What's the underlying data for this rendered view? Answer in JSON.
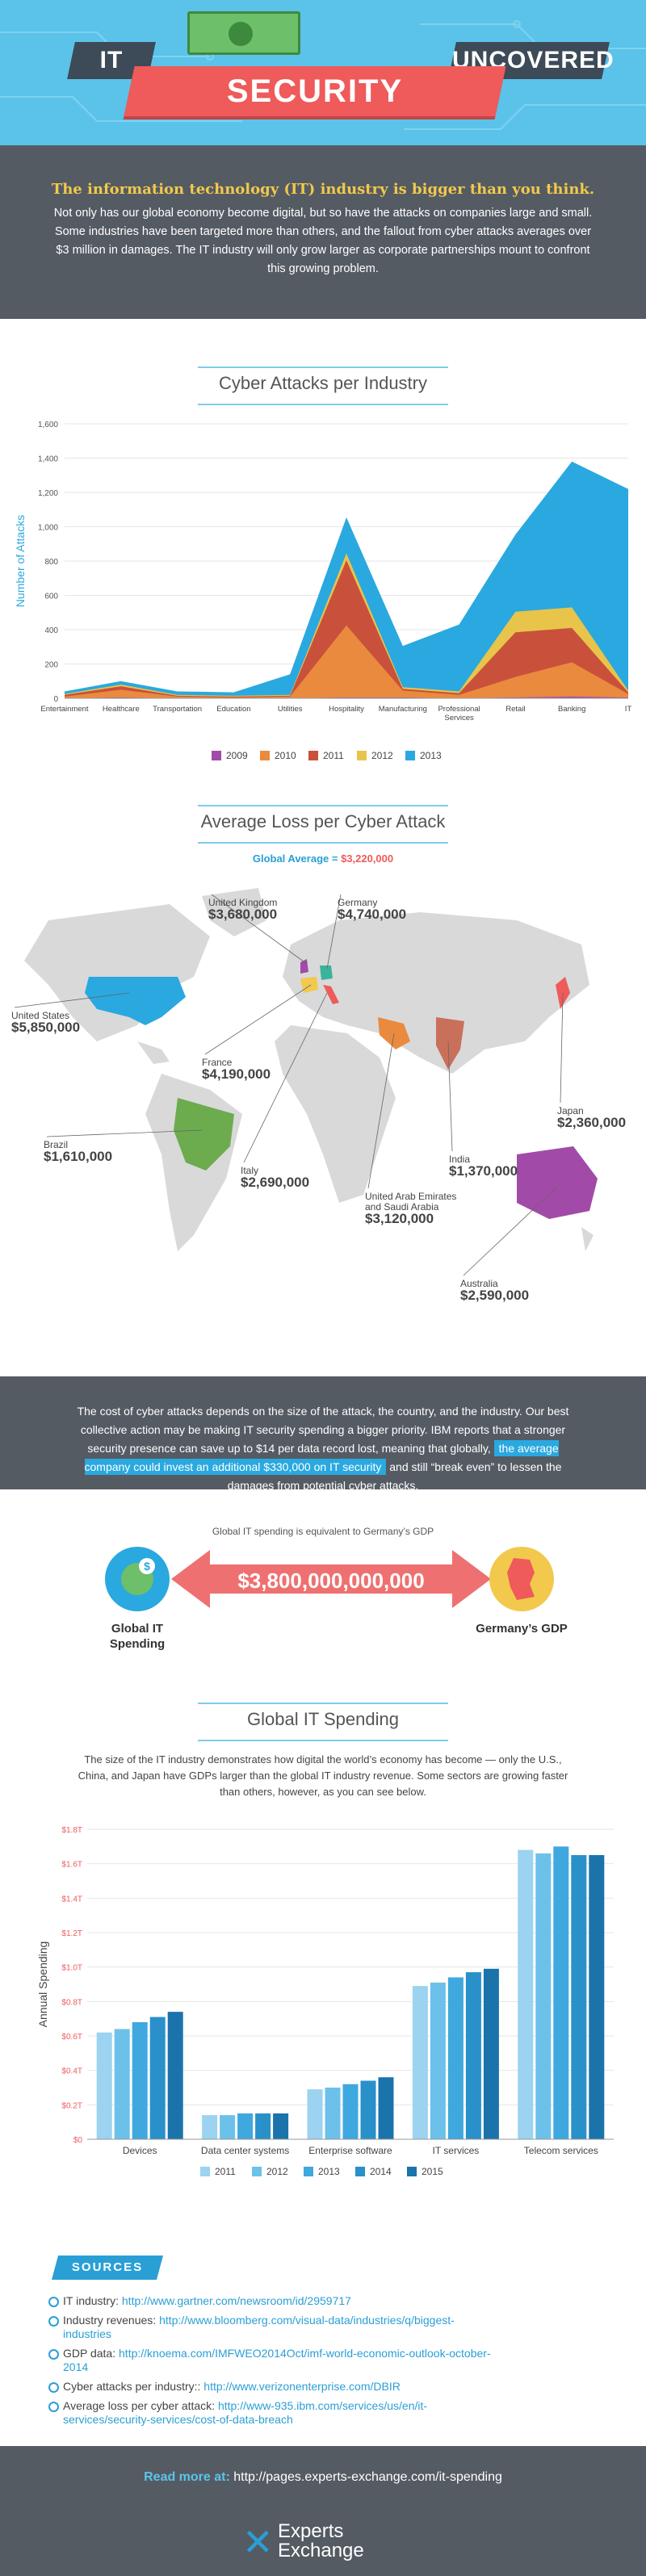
{
  "header": {
    "word_it": "IT",
    "word_security": "SECURITY",
    "word_uncovered": "UNCOVERED"
  },
  "intro": {
    "heading": "The information technology (IT) industry is bigger than you think.",
    "body": "Not only has our global economy become digital, but so have the attacks on companies large and small. Some industries have been targeted more than others, and the fallout from cyber attacks averages over $3 million in damages. The IT industry will only grow larger as corporate partnerships mount to confront this growing problem."
  },
  "chart1": {
    "title": "Cyber Attacks per Industry",
    "chart_data": {
      "type": "area",
      "ylabel": "Number of Attacks",
      "ylim": [
        0,
        1600
      ],
      "yticks": [
        "0",
        "200",
        "400",
        "600",
        "800",
        "1,000",
        "1,200",
        "1,400",
        "1,600"
      ],
      "categories": [
        "Entertainment",
        "Healthcare",
        "Transportation",
        "Education",
        "Utilities",
        "Hospitality",
        "Manufacturing",
        "Professional Services",
        "Retail",
        "Banking",
        "IT"
      ],
      "series": [
        {
          "name": "2009",
          "color": "#a24aa8",
          "values": [
            0,
            5,
            0,
            0,
            0,
            5,
            5,
            0,
            5,
            10,
            5
          ]
        },
        {
          "name": "2010",
          "color": "#ea8a3e",
          "values": [
            10,
            45,
            10,
            5,
            10,
            420,
            40,
            20,
            120,
            200,
            20
          ]
        },
        {
          "name": "2011",
          "color": "#c9513b",
          "values": [
            10,
            20,
            5,
            5,
            5,
            380,
            10,
            10,
            260,
            200,
            10
          ]
        },
        {
          "name": "2012",
          "color": "#e8c44a",
          "values": [
            5,
            10,
            5,
            5,
            5,
            40,
            10,
            10,
            120,
            120,
            10
          ]
        },
        {
          "name": "2013",
          "color": "#2aa8e0",
          "values": [
            15,
            20,
            20,
            20,
            120,
            210,
            240,
            390,
            450,
            850,
            1175
          ]
        }
      ],
      "legend": "bottom"
    }
  },
  "loss": {
    "title": "Average Loss per Cyber Attack",
    "global_label": "Global Average = ",
    "global_value": "$3,220,000",
    "countries": [
      {
        "name": "United Kingdom",
        "value": "$3,680,000"
      },
      {
        "name": "Germany",
        "value": "$4,740,000"
      },
      {
        "name": "United States",
        "value": "$5,850,000"
      },
      {
        "name": "France",
        "value": "$4,190,000"
      },
      {
        "name": "Japan",
        "value": "$2,360,000"
      },
      {
        "name": "Brazil",
        "value": "$1,610,000"
      },
      {
        "name": "Italy",
        "value": "$2,690,000"
      },
      {
        "name": "India",
        "value": "$1,370,000"
      },
      {
        "name": "United Arab Emirates and Saudi Arabia",
        "value": "$3,120,000"
      },
      {
        "name": "Australia",
        "value": "$2,590,000"
      }
    ]
  },
  "mid": {
    "text_before": "The cost of cyber attacks depends on the size of the attack, the country, and the industry. Our best collective action may be making IT security spending a bigger priority. IBM reports that a stronger security presence can save up to $14 per data record lost, meaning that globally,",
    "highlight": "the average company could invest an additional $330,000 on IT security",
    "text_after": "and still “break even” to lessen the damages from potential cyber attacks."
  },
  "compare": {
    "caption": "Global IT spending is equivalent to Germany’s GDP",
    "amount": "$3,800,000,000,000",
    "left_label": "Global IT Spending",
    "right_label": "Germany’s GDP"
  },
  "chart2": {
    "title": "Global IT Spending",
    "intro": "The size of the IT industry demonstrates how digital the world’s economy has become — only the U.S., China, and Japan have GDPs larger than the global IT industry revenue. Some sectors are growing faster than others, however, as you can see below.",
    "chart_data": {
      "type": "bar",
      "ylabel": "Annual Spending",
      "ylim": [
        0,
        1.8
      ],
      "yticks": [
        "$0",
        "$0.2T",
        "$0.4T",
        "$0.6T",
        "$0.8T",
        "$1.0T",
        "$1.2T",
        "$1.4T",
        "$1.6T",
        "$1.8T"
      ],
      "categories": [
        "Devices",
        "Data center systems",
        "Enterprise software",
        "IT services",
        "Telecom services"
      ],
      "series": [
        {
          "name": "2011",
          "color": "#9bd3f0",
          "values": [
            0.62,
            0.14,
            0.29,
            0.89,
            1.68
          ]
        },
        {
          "name": "2012",
          "color": "#6cc1ea",
          "values": [
            0.64,
            0.14,
            0.3,
            0.91,
            1.66
          ]
        },
        {
          "name": "2013",
          "color": "#3fa8df",
          "values": [
            0.68,
            0.15,
            0.32,
            0.94,
            1.7
          ]
        },
        {
          "name": "2014",
          "color": "#2a90c9",
          "values": [
            0.71,
            0.15,
            0.34,
            0.97,
            1.65
          ]
        },
        {
          "name": "2015",
          "color": "#1b73ab",
          "values": [
            0.74,
            0.15,
            0.36,
            0.99,
            1.65
          ]
        }
      ],
      "legend": "bottom"
    }
  },
  "sources": {
    "badge": "SOURCES",
    "items": [
      {
        "label": "IT industry: ",
        "link": "http://www.gartner.com/newsroom/id/2959717"
      },
      {
        "label": "Industry revenues: ",
        "link": "http://www.bloomberg.com/visual-data/industries/q/biggest-industries"
      },
      {
        "label": "GDP data: ",
        "link": "http://knoema.com/IMFWEO2014Oct/imf-world-economic-outlook-october-2014"
      },
      {
        "label": "Cyber attacks per industry:: ",
        "link": "http://www.verizonenterprise.com/DBIR"
      },
      {
        "label": "Average loss per cyber attack: ",
        "link": "http://www-935.ibm.com/services/us/en/it-services/security-services/cost-of-data-breach"
      }
    ]
  },
  "footer": {
    "read_more_label": "Read more at: ",
    "read_more_url": "http://pages.experts-exchange.com/it-spending",
    "logo_line1": "Experts",
    "logo_line2": "Exchange"
  }
}
